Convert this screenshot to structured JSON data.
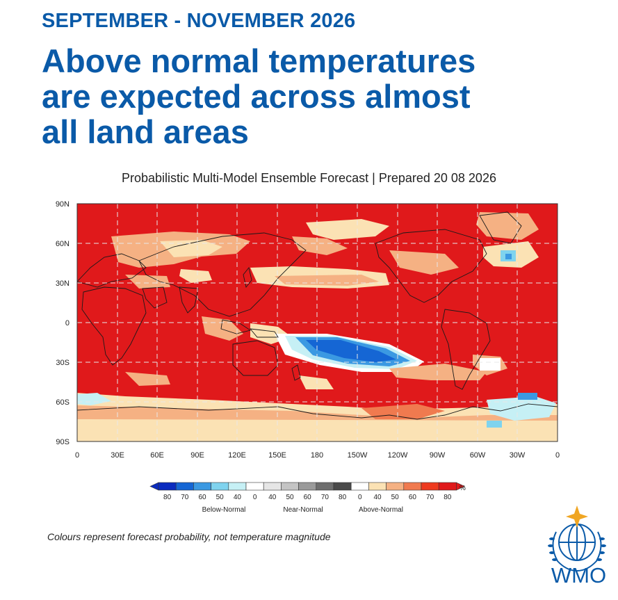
{
  "header": {
    "season": "SEPTEMBER - NOVEMBER 2026",
    "headline_lines": [
      "Above normal temperatures",
      "are expected across almost",
      "all land areas"
    ]
  },
  "subtitle": "Probabilistic Multi-Model Ensemble Forecast | Prepared 20 08 2026",
  "map": {
    "lat_ticks": [
      "90N",
      "60N",
      "30N",
      "0",
      "30S",
      "60S",
      "90S"
    ],
    "lon_ticks": [
      "0",
      "30E",
      "60E",
      "90E",
      "120E",
      "150E",
      "180",
      "150W",
      "120W",
      "90W",
      "60W",
      "30W",
      "0"
    ],
    "colors": {
      "above_80": "#e0191b",
      "above_70": "#ee3a1f",
      "above_60": "#f07a4f",
      "above_50": "#f5b183",
      "above_40": "#fbe2b4",
      "near_normal": "#ffffff",
      "below_40": "#c6f0f5",
      "below_50": "#7fd3ee",
      "below_60": "#3b99e2",
      "below_70": "#1566d4",
      "below_80": "#0a2bbf",
      "grid": "#e8e8e8",
      "land_outline": "#1a1a1a"
    }
  },
  "legend": {
    "unit": "%",
    "below_labels": [
      "80",
      "70",
      "60",
      "50",
      "40"
    ],
    "near_labels": [
      "0",
      "40",
      "50",
      "60",
      "70",
      "80"
    ],
    "above_labels": [
      "0",
      "40",
      "50",
      "60",
      "70",
      "80"
    ],
    "below_title": "Below-Normal",
    "near_title": "Near-Normal",
    "above_title": "Above-Normal",
    "below_colors": [
      "#0a2bbf",
      "#1566d4",
      "#3b99e2",
      "#7fd3ee",
      "#c6f0f5"
    ],
    "near_colors": [
      "#ffffff",
      "#e6e6e6",
      "#c4c4c4",
      "#9a9a9a",
      "#6e6e6e",
      "#4a4a4a"
    ],
    "above_colors": [
      "#ffffff",
      "#fbe2b4",
      "#f5b183",
      "#f07a4f",
      "#ee3a1f",
      "#e0191b"
    ]
  },
  "footnote": "Colours represent forecast probability, not temperature magnitude",
  "logo": {
    "text": "WMO",
    "icon": "wmo-globe-icon",
    "color": "#0a5aa8",
    "star_color": "#f0a623"
  }
}
